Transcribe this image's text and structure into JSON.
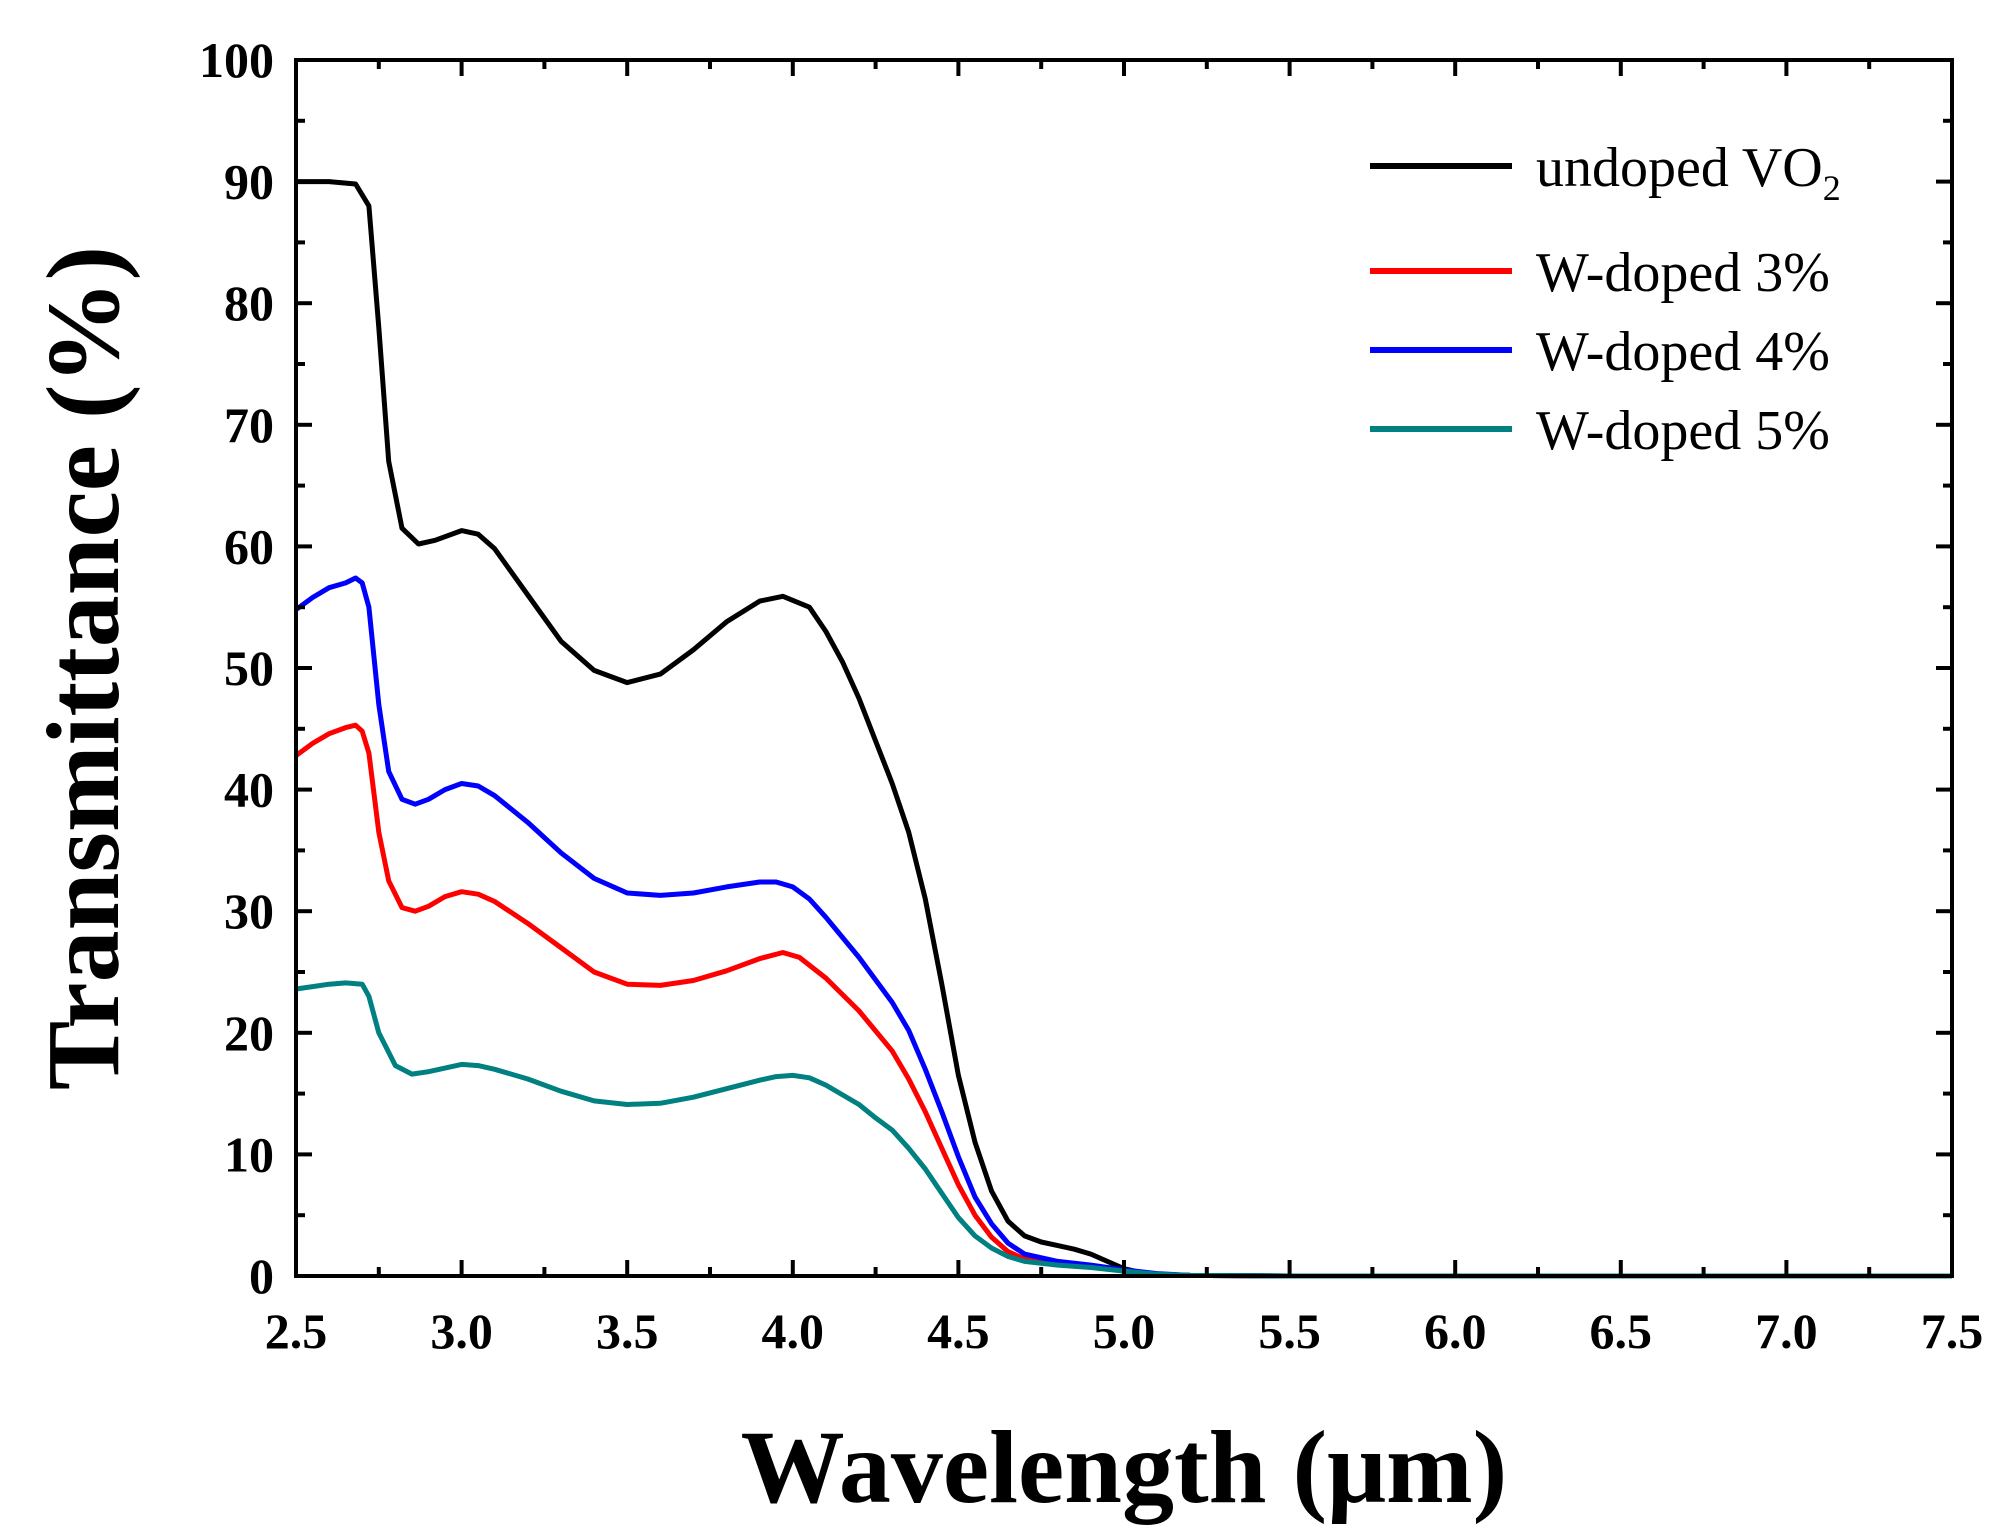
{
  "chart_data": {
    "type": "line",
    "title": "",
    "xlabel": "Wavelength (μm)",
    "ylabel": "Transmittance (%)",
    "xlim": [
      2.5,
      7.5
    ],
    "ylim": [
      0,
      100
    ],
    "x_ticks": [
      "2.5",
      "3.0",
      "3.5",
      "4.0",
      "4.5",
      "5.0",
      "5.5",
      "6.0",
      "6.5",
      "7.0",
      "7.5"
    ],
    "y_ticks": [
      "0",
      "10",
      "20",
      "30",
      "40",
      "50",
      "60",
      "70",
      "80",
      "90",
      "100"
    ],
    "grid": false,
    "legend_position": "top-right",
    "series": [
      {
        "name": "undoped VO",
        "name_subscript": "2",
        "color": "#000000",
        "points": [
          [
            2.5,
            90.0
          ],
          [
            2.6,
            90.0
          ],
          [
            2.68,
            89.8
          ],
          [
            2.72,
            88.0
          ],
          [
            2.75,
            78.0
          ],
          [
            2.78,
            67.0
          ],
          [
            2.82,
            61.5
          ],
          [
            2.87,
            60.2
          ],
          [
            2.92,
            60.5
          ],
          [
            3.0,
            61.3
          ],
          [
            3.05,
            61.0
          ],
          [
            3.1,
            59.8
          ],
          [
            3.2,
            56.0
          ],
          [
            3.3,
            52.2
          ],
          [
            3.4,
            49.8
          ],
          [
            3.5,
            48.8
          ],
          [
            3.6,
            49.5
          ],
          [
            3.7,
            51.5
          ],
          [
            3.8,
            53.8
          ],
          [
            3.9,
            55.5
          ],
          [
            3.97,
            55.9
          ],
          [
            4.05,
            55.0
          ],
          [
            4.1,
            53.0
          ],
          [
            4.15,
            50.5
          ],
          [
            4.2,
            47.5
          ],
          [
            4.25,
            44.0
          ],
          [
            4.3,
            40.5
          ],
          [
            4.35,
            36.5
          ],
          [
            4.4,
            31.0
          ],
          [
            4.45,
            24.0
          ],
          [
            4.5,
            16.5
          ],
          [
            4.55,
            11.0
          ],
          [
            4.6,
            7.0
          ],
          [
            4.65,
            4.5
          ],
          [
            4.7,
            3.3
          ],
          [
            4.75,
            2.8
          ],
          [
            4.8,
            2.5
          ],
          [
            4.85,
            2.2
          ],
          [
            4.9,
            1.8
          ],
          [
            4.95,
            1.2
          ],
          [
            5.0,
            0.6
          ],
          [
            5.05,
            0.3
          ],
          [
            5.1,
            0.15
          ],
          [
            5.2,
            0.05
          ],
          [
            5.5,
            0.0
          ],
          [
            6.0,
            0.0
          ],
          [
            6.5,
            0.0
          ],
          [
            7.0,
            0.0
          ],
          [
            7.5,
            0.0
          ]
        ]
      },
      {
        "name": "W-doped 3%",
        "color": "#ff0000",
        "points": [
          [
            2.5,
            42.8
          ],
          [
            2.55,
            43.8
          ],
          [
            2.6,
            44.6
          ],
          [
            2.65,
            45.1
          ],
          [
            2.68,
            45.3
          ],
          [
            2.7,
            44.8
          ],
          [
            2.72,
            43.0
          ],
          [
            2.75,
            36.5
          ],
          [
            2.78,
            32.5
          ],
          [
            2.82,
            30.3
          ],
          [
            2.86,
            30.0
          ],
          [
            2.9,
            30.4
          ],
          [
            2.95,
            31.2
          ],
          [
            3.0,
            31.6
          ],
          [
            3.05,
            31.4
          ],
          [
            3.1,
            30.8
          ],
          [
            3.2,
            29.0
          ],
          [
            3.3,
            27.0
          ],
          [
            3.4,
            25.0
          ],
          [
            3.5,
            24.0
          ],
          [
            3.6,
            23.9
          ],
          [
            3.7,
            24.3
          ],
          [
            3.8,
            25.1
          ],
          [
            3.9,
            26.1
          ],
          [
            3.97,
            26.6
          ],
          [
            4.02,
            26.2
          ],
          [
            4.1,
            24.5
          ],
          [
            4.2,
            21.8
          ],
          [
            4.3,
            18.5
          ],
          [
            4.35,
            16.2
          ],
          [
            4.4,
            13.5
          ],
          [
            4.45,
            10.5
          ],
          [
            4.5,
            7.5
          ],
          [
            4.55,
            5.0
          ],
          [
            4.6,
            3.2
          ],
          [
            4.65,
            2.0
          ],
          [
            4.7,
            1.4
          ],
          [
            4.8,
            1.0
          ],
          [
            4.9,
            0.8
          ],
          [
            5.0,
            0.4
          ],
          [
            5.1,
            0.15
          ],
          [
            5.2,
            0.05
          ],
          [
            5.5,
            0.0
          ],
          [
            6.0,
            0.0
          ],
          [
            6.5,
            0.0
          ],
          [
            7.0,
            0.0
          ],
          [
            7.5,
            0.0
          ]
        ]
      },
      {
        "name": "W-doped 4%",
        "color": "#0000ff",
        "points": [
          [
            2.5,
            54.8
          ],
          [
            2.55,
            55.8
          ],
          [
            2.6,
            56.6
          ],
          [
            2.65,
            57.0
          ],
          [
            2.68,
            57.4
          ],
          [
            2.7,
            57.0
          ],
          [
            2.72,
            55.0
          ],
          [
            2.75,
            47.0
          ],
          [
            2.78,
            41.5
          ],
          [
            2.82,
            39.2
          ],
          [
            2.86,
            38.8
          ],
          [
            2.9,
            39.2
          ],
          [
            2.95,
            40.0
          ],
          [
            3.0,
            40.5
          ],
          [
            3.05,
            40.3
          ],
          [
            3.1,
            39.5
          ],
          [
            3.2,
            37.3
          ],
          [
            3.3,
            34.8
          ],
          [
            3.4,
            32.7
          ],
          [
            3.5,
            31.5
          ],
          [
            3.6,
            31.3
          ],
          [
            3.7,
            31.5
          ],
          [
            3.8,
            32.0
          ],
          [
            3.9,
            32.4
          ],
          [
            3.95,
            32.4
          ],
          [
            4.0,
            32.0
          ],
          [
            4.05,
            31.0
          ],
          [
            4.1,
            29.5
          ],
          [
            4.2,
            26.2
          ],
          [
            4.3,
            22.5
          ],
          [
            4.35,
            20.2
          ],
          [
            4.4,
            17.0
          ],
          [
            4.45,
            13.5
          ],
          [
            4.5,
            9.8
          ],
          [
            4.55,
            6.5
          ],
          [
            4.6,
            4.3
          ],
          [
            4.65,
            2.7
          ],
          [
            4.7,
            1.8
          ],
          [
            4.8,
            1.2
          ],
          [
            4.9,
            0.9
          ],
          [
            5.0,
            0.5
          ],
          [
            5.1,
            0.2
          ],
          [
            5.2,
            0.05
          ],
          [
            5.5,
            0.0
          ],
          [
            6.0,
            0.0
          ],
          [
            6.5,
            0.0
          ],
          [
            7.0,
            0.0
          ],
          [
            7.5,
            0.0
          ]
        ]
      },
      {
        "name": "W-doped 5%",
        "color": "#008080",
        "points": [
          [
            2.5,
            23.6
          ],
          [
            2.55,
            23.8
          ],
          [
            2.6,
            24.0
          ],
          [
            2.65,
            24.1
          ],
          [
            2.7,
            24.0
          ],
          [
            2.72,
            23.0
          ],
          [
            2.75,
            20.0
          ],
          [
            2.8,
            17.3
          ],
          [
            2.85,
            16.6
          ],
          [
            2.9,
            16.8
          ],
          [
            2.95,
            17.1
          ],
          [
            3.0,
            17.4
          ],
          [
            3.05,
            17.3
          ],
          [
            3.1,
            17.0
          ],
          [
            3.2,
            16.2
          ],
          [
            3.3,
            15.2
          ],
          [
            3.4,
            14.4
          ],
          [
            3.5,
            14.1
          ],
          [
            3.6,
            14.2
          ],
          [
            3.7,
            14.7
          ],
          [
            3.8,
            15.4
          ],
          [
            3.9,
            16.1
          ],
          [
            3.95,
            16.4
          ],
          [
            4.0,
            16.5
          ],
          [
            4.05,
            16.3
          ],
          [
            4.1,
            15.7
          ],
          [
            4.2,
            14.1
          ],
          [
            4.25,
            13.0
          ],
          [
            4.3,
            12.0
          ],
          [
            4.35,
            10.5
          ],
          [
            4.4,
            8.8
          ],
          [
            4.45,
            6.8
          ],
          [
            4.5,
            4.8
          ],
          [
            4.55,
            3.3
          ],
          [
            4.6,
            2.3
          ],
          [
            4.65,
            1.6
          ],
          [
            4.7,
            1.2
          ],
          [
            4.8,
            0.9
          ],
          [
            4.9,
            0.7
          ],
          [
            5.0,
            0.4
          ],
          [
            5.1,
            0.15
          ],
          [
            5.2,
            0.05
          ],
          [
            5.5,
            0.0
          ],
          [
            6.0,
            0.0
          ],
          [
            6.5,
            0.0
          ],
          [
            7.0,
            0.0
          ],
          [
            7.5,
            0.0
          ]
        ]
      }
    ]
  }
}
